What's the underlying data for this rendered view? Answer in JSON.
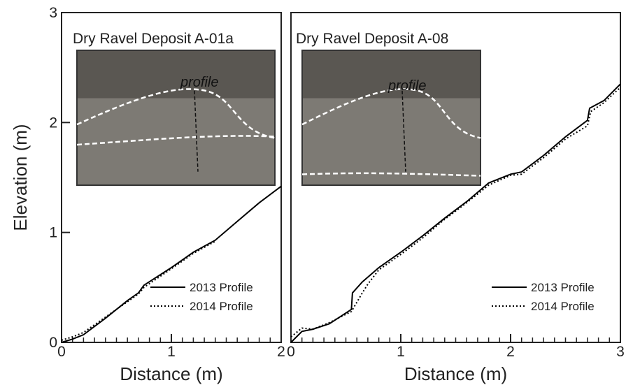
{
  "chart_data": [
    {
      "type": "line",
      "title": "Dry Ravel Deposit A-01a",
      "xlabel": "Distance (m)",
      "ylabel": "Elevation (m)",
      "inset_label": "profile",
      "xlim": [
        0,
        2
      ],
      "ylim": [
        0,
        3
      ],
      "xticks": [
        0,
        1,
        2
      ],
      "yticks": [
        0,
        1,
        2,
        3
      ],
      "xminorticks": [
        0.1,
        0.2,
        0.3,
        0.4,
        0.5,
        0.6,
        0.7,
        0.8,
        0.9,
        1.1,
        1.2,
        1.3,
        1.4,
        1.5,
        1.6,
        1.7,
        1.8,
        1.9
      ],
      "legend": "lower right",
      "series": [
        {
          "name": "2013 Profile",
          "color": "#000000",
          "dash": "solid",
          "x": [
            0,
            0.1,
            0.2,
            0.4,
            0.6,
            0.7,
            0.75,
            1.0,
            1.2,
            1.4,
            1.6,
            1.8,
            2.0
          ],
          "values": [
            0,
            0.03,
            0.07,
            0.22,
            0.38,
            0.45,
            0.52,
            0.68,
            0.82,
            0.93,
            1.1,
            1.27,
            1.42
          ]
        },
        {
          "name": "2014 Profile",
          "color": "#000000",
          "dash": "dotted",
          "x": [
            0,
            0.1,
            0.2,
            0.4,
            0.6,
            0.7,
            0.75,
            1.0,
            1.2,
            1.4
          ],
          "values": [
            0.02,
            0.05,
            0.09,
            0.23,
            0.37,
            0.44,
            0.5,
            0.67,
            0.81,
            0.92
          ]
        }
      ]
    },
    {
      "type": "line",
      "title": "Dry Ravel Deposit A-08",
      "xlabel": "Distance (m)",
      "inset_label": "profile",
      "xlim": [
        0,
        3
      ],
      "ylim": [
        0,
        3
      ],
      "xticks": [
        0,
        1,
        2,
        3
      ],
      "xminorticks": [
        0.1,
        0.2,
        0.3,
        0.4,
        0.5,
        0.6,
        0.7,
        0.8,
        0.9,
        1.1,
        1.2,
        1.3,
        1.4,
        1.5,
        1.6,
        1.7,
        1.8,
        1.9,
        2.1,
        2.2,
        2.3,
        2.4,
        2.5,
        2.6,
        2.7,
        2.8,
        2.9
      ],
      "legend": "lower right",
      "series": [
        {
          "name": "2013 Profile",
          "color": "#000000",
          "dash": "solid",
          "x": [
            0,
            0.1,
            0.2,
            0.35,
            0.55,
            0.56,
            0.65,
            0.8,
            1.0,
            1.2,
            1.4,
            1.6,
            1.8,
            2.0,
            2.1,
            2.3,
            2.5,
            2.7,
            2.72,
            2.85,
            3.0
          ],
          "values": [
            0,
            0.1,
            0.12,
            0.17,
            0.3,
            0.45,
            0.55,
            0.68,
            0.82,
            0.97,
            1.13,
            1.28,
            1.45,
            1.53,
            1.55,
            1.7,
            1.87,
            2.02,
            2.13,
            2.2,
            2.35
          ]
        },
        {
          "name": "2014 Profile",
          "color": "#000000",
          "dash": "dotted",
          "x": [
            0,
            0.1,
            0.2,
            0.35,
            0.55,
            0.65,
            0.7,
            0.8,
            1.0,
            1.2,
            1.4,
            1.6,
            1.8,
            2.0,
            2.1,
            2.3,
            2.5,
            2.7,
            2.73,
            2.85,
            3.0
          ],
          "values": [
            0.05,
            0.13,
            0.12,
            0.18,
            0.28,
            0.45,
            0.53,
            0.66,
            0.8,
            0.95,
            1.12,
            1.27,
            1.43,
            1.52,
            1.53,
            1.68,
            1.85,
            1.97,
            2.1,
            2.18,
            2.32
          ]
        }
      ]
    }
  ]
}
